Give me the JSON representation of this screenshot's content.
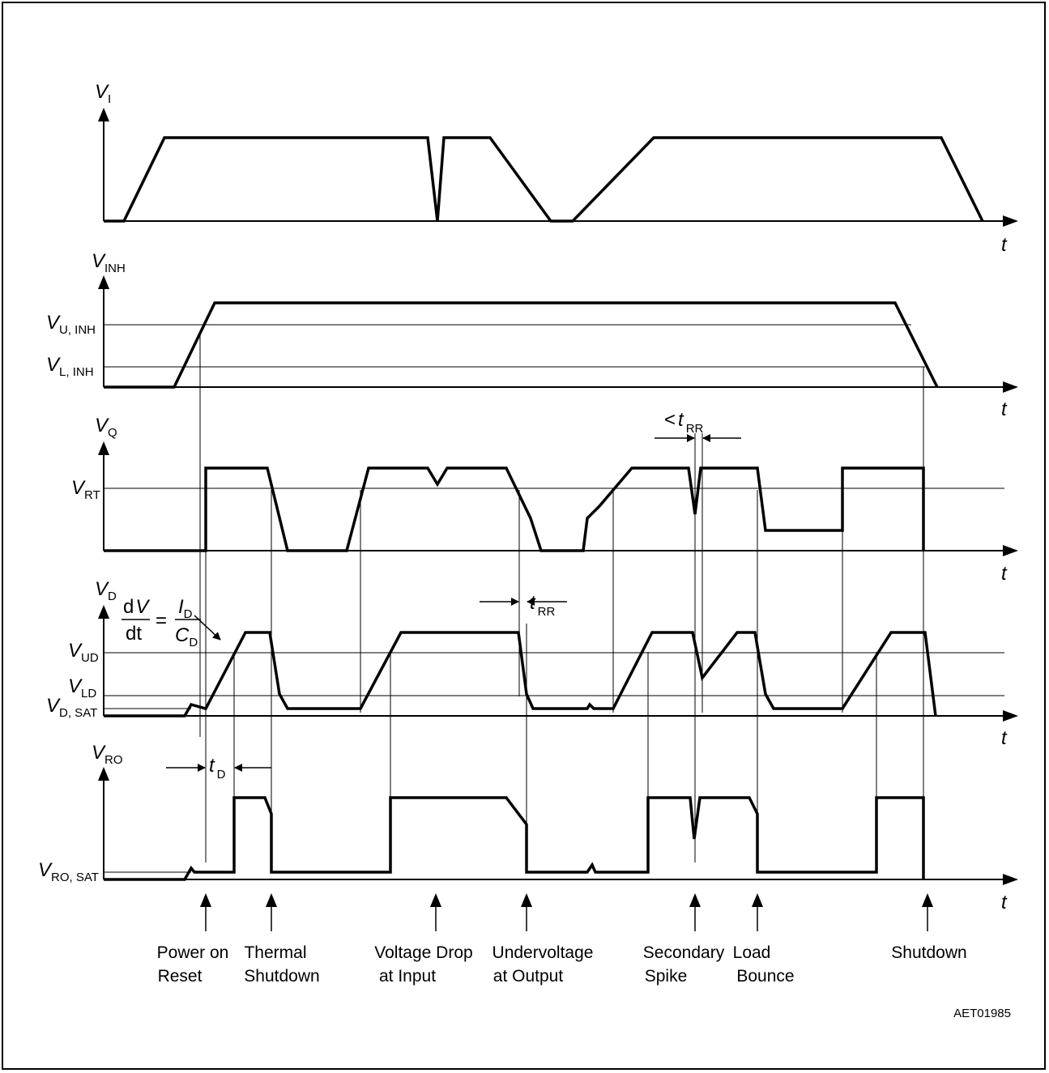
{
  "figure_code": "AET01985",
  "time_axis_label": "t",
  "panels": [
    {
      "id": "vi",
      "symbol": "V",
      "subscript": "I"
    },
    {
      "id": "vinh",
      "symbol": "V",
      "subscript": "INH"
    },
    {
      "id": "vq",
      "symbol": "V",
      "subscript": "Q"
    },
    {
      "id": "vd",
      "symbol": "V",
      "subscript": "D"
    },
    {
      "id": "vro",
      "symbol": "V",
      "subscript": "RO"
    }
  ],
  "levels": {
    "vu_inh": {
      "symbol": "V",
      "subscript": "U, INH"
    },
    "vl_inh": {
      "symbol": "V",
      "subscript": "L, INH"
    },
    "vrt": {
      "symbol": "V",
      "subscript": "RT"
    },
    "vud": {
      "symbol": "V",
      "subscript": "UD"
    },
    "vld": {
      "symbol": "V",
      "subscript": "LD"
    },
    "vd_sat": {
      "symbol": "V",
      "subscript": "D, SAT"
    },
    "vro_sat": {
      "symbol": "V",
      "subscript": "RO, SAT"
    }
  },
  "annotations": {
    "lt_trr_prefix": "<",
    "t_symbol": "t",
    "rr_sub": "RR",
    "d_sub": "D",
    "formula": {
      "dv_d": "d",
      "dv_v": "V",
      "dt": "dt",
      "eq": "=",
      "i": "I",
      "i_sub": "D",
      "c": "C",
      "c_sub": "D"
    }
  },
  "events": [
    {
      "line1": "Power on",
      "line2": "Reset"
    },
    {
      "line1": "Thermal",
      "line2": "Shutdown"
    },
    {
      "line1": "Voltage Drop",
      "line2": "at Input"
    },
    {
      "line1": "Undervoltage",
      "line2": "at Output"
    },
    {
      "line1": "Secondary",
      "line2": "Spike"
    },
    {
      "line1": "Load",
      "line2": "Bounce"
    },
    {
      "line1": "Shutdown",
      "line2": ""
    }
  ]
}
